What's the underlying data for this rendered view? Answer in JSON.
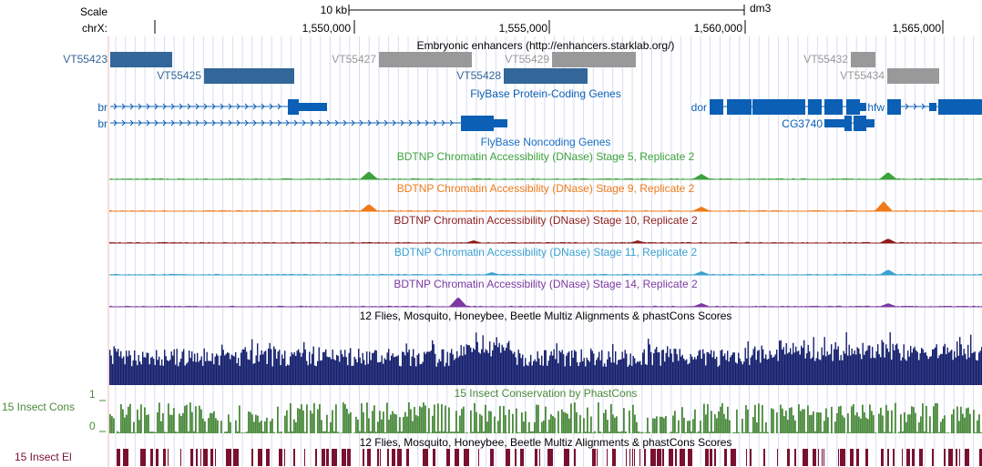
{
  "header": {
    "scale_label": "Scale",
    "scale_bar_text": "10 kb",
    "assembly": "dm3",
    "chrom_label": "chrX:",
    "ticks": [
      "1,550,000",
      "1,555,000",
      "1,560,000",
      "1,565,000"
    ]
  },
  "tracks": {
    "enhancers": {
      "title": "Embryonic enhancers (http://enhancers.starklab.org/)",
      "items": [
        {
          "name": "VT55423",
          "color": "#336699"
        },
        {
          "name": "VT55425",
          "color": "#336699"
        },
        {
          "name": "VT55427",
          "color": "#999999"
        },
        {
          "name": "VT55429",
          "color": "#999999"
        },
        {
          "name": "VT55428",
          "color": "#336699"
        },
        {
          "name": "VT55432",
          "color": "#999999"
        },
        {
          "name": "VT55434",
          "color": "#999999"
        }
      ]
    },
    "coding_genes": {
      "title": "FlyBase Protein-Coding Genes",
      "color": "#0b5fb5",
      "genes": [
        "br",
        "br",
        "dor",
        "hfw",
        "CG3740"
      ]
    },
    "noncoding_genes": {
      "title": "FlyBase Noncoding Genes",
      "color": "#1a6fc4"
    },
    "dnase": [
      {
        "title": "BDTNP Chromatin Accessibility (DNase) Stage 5, Replicate 2",
        "color": "#3ca23c"
      },
      {
        "title": "BDTNP Chromatin Accessibility (DNase) Stage 9, Replicate 2",
        "color": "#f07a1a"
      },
      {
        "title": "BDTNP Chromatin Accessibility (DNase) Stage 10, Replicate 2",
        "color": "#8c1c1c"
      },
      {
        "title": "BDTNP Chromatin Accessibility (DNase) Stage 11, Replicate 2",
        "color": "#3aa0d0"
      },
      {
        "title": "BDTNP Chromatin Accessibility (DNase) Stage 14, Replicate 2",
        "color": "#7a3aa0"
      }
    ],
    "multiz_title": "12 Flies, Mosquito, Honeybee, Beetle Multiz Alignments & phastCons Scores",
    "multiz_color": "#16206e",
    "phastcons": {
      "title": "15 Insect Conservation by PhastCons",
      "side_label": "15 Insect Cons",
      "axis_max": "1",
      "axis_min": "0",
      "color": "#4a8a3c"
    },
    "multiz_title_2": "12 Flies, Mosquito, Honeybee, Beetle Multiz Alignments & phastCons Scores",
    "elements": {
      "side_label": "15 Insect El",
      "color": "#7a1030"
    }
  }
}
